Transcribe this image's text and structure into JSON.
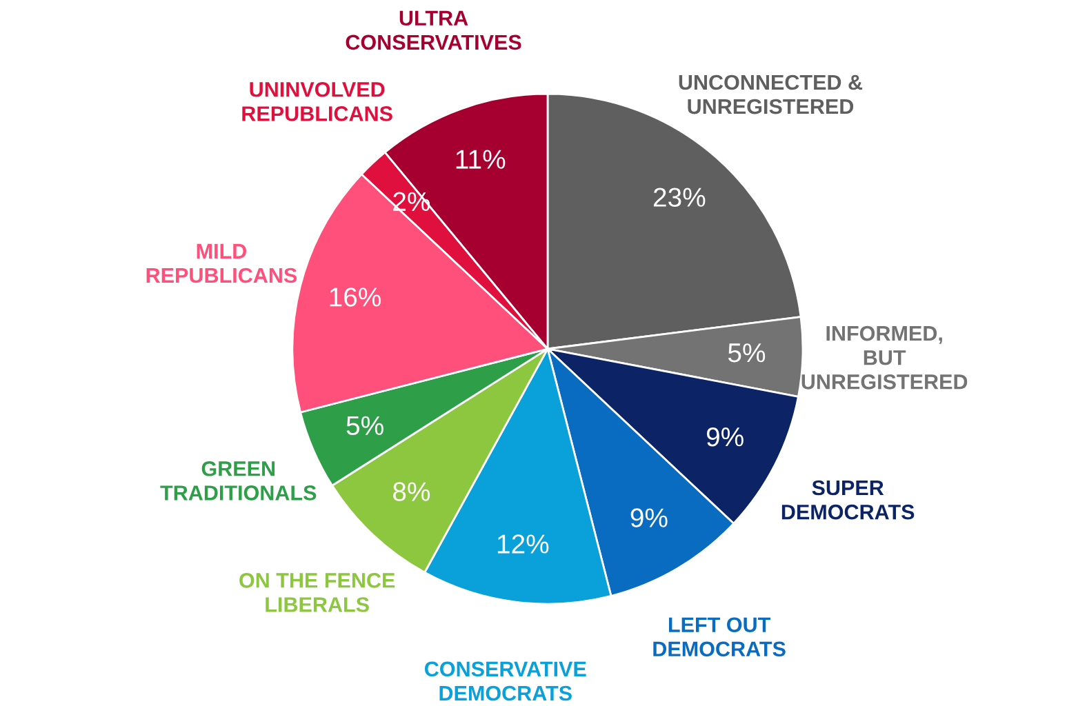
{
  "chart_data": {
    "type": "pie",
    "categories": [
      "UNCONNECTED &\nUNREGISTERED",
      "INFORMED,\nBUT\nUNREGISTERED",
      "SUPER\nDEMOCRATS",
      "LEFT OUT\nDEMOCRATS",
      "CONSERVATIVE\nDEMOCRATS",
      "ON THE FENCE\nLIBERALS",
      "GREEN\nTRADITIONALS",
      "MILD\nREPUBLICANS",
      "UNINVOLVED\nREPUBLICANS",
      "ULTRA\nCONSERVATIVES"
    ],
    "values": [
      23,
      5,
      9,
      9,
      12,
      8,
      5,
      16,
      2,
      11
    ],
    "value_labels": [
      "23%",
      "5%",
      "9%",
      "9%",
      "12%",
      "8%",
      "5%",
      "16%",
      "2%",
      "11%"
    ],
    "colors": [
      "#5f5f5f",
      "#737373",
      "#0c2466",
      "#0a6cc0",
      "#0aa0da",
      "#8dc63f",
      "#2e9e48",
      "#ff4f7b",
      "#e0103e",
      "#a50030"
    ]
  }
}
